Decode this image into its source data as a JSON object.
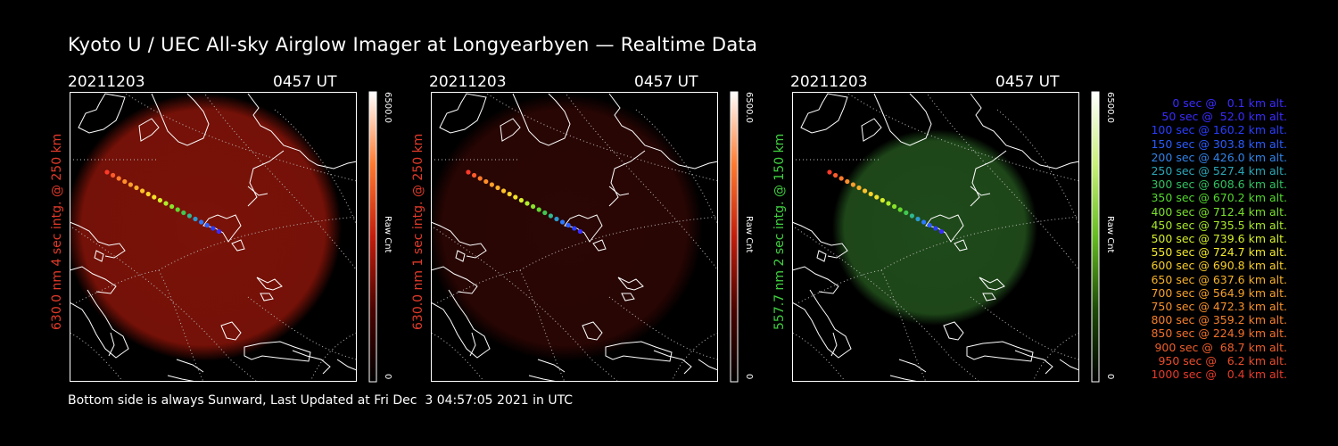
{
  "title": "Kyoto U / UEC All-sky Airglow Imager at Longyearbyen — Realtime Data",
  "panels": [
    {
      "date": "20211203",
      "time": "0457 UT",
      "side_label": "630.0 nm 4 sec intg. @ 250 km",
      "label_color": "#e23a2a",
      "cbar_max": "6500.0",
      "cbar_unit": "Raw Cnt",
      "cbar_min": "0",
      "tint": "#7a1208",
      "cbar_colors": [
        "#ffffff",
        "#ff7a30",
        "#c21d0c",
        "#4a0400",
        "#000000"
      ]
    },
    {
      "date": "20211203",
      "time": "0457 UT",
      "side_label": "630.0 nm 1 sec intg. @ 250 km",
      "label_color": "#e23a2a",
      "cbar_max": "6500.0",
      "cbar_unit": "Raw Cnt",
      "cbar_min": "0",
      "tint": "#2a0604",
      "cbar_colors": [
        "#ffffff",
        "#ff7a30",
        "#c21d0c",
        "#4a0400",
        "#000000"
      ]
    },
    {
      "date": "20211203",
      "time": "0457 UT",
      "side_label": "557.7 nm 2 sec intg. @ 150 km",
      "label_color": "#3fd13f",
      "cbar_max": "6500.0",
      "cbar_unit": "Raw Cnt",
      "cbar_min": "0",
      "tint": "#1f4a1a",
      "cbar_colors": [
        "#ffffff",
        "#c9f07a",
        "#66bb22",
        "#1d4a08",
        "#000000"
      ]
    }
  ],
  "legend": [
    {
      "text": "0 sec @   0.1 km alt.",
      "color": "#3a2bff"
    },
    {
      "text": "50 sec @  52.0 km alt.",
      "color": "#3a2bff"
    },
    {
      "text": "100 sec @ 160.2 km alt.",
      "color": "#2a3dff"
    },
    {
      "text": "150 sec @ 303.8 km alt.",
      "color": "#2a5cff"
    },
    {
      "text": "200 sec @ 426.0 km alt.",
      "color": "#3083e8"
    },
    {
      "text": "250 sec @ 527.4 km alt.",
      "color": "#2aa7b8"
    },
    {
      "text": "300 sec @ 608.6 km alt.",
      "color": "#30c060"
    },
    {
      "text": "350 sec @ 670.2 km alt.",
      "color": "#52d82c"
    },
    {
      "text": "400 sec @ 712.4 km alt.",
      "color": "#7ae02a"
    },
    {
      "text": "450 sec @ 735.5 km alt.",
      "color": "#a8e82a"
    },
    {
      "text": "500 sec @ 739.6 km alt.",
      "color": "#d6ee2a"
    },
    {
      "text": "550 sec @ 724.7 km alt.",
      "color": "#f2ea2a"
    },
    {
      "text": "600 sec @ 690.8 km alt.",
      "color": "#f6cc2a"
    },
    {
      "text": "650 sec @ 637.6 km alt.",
      "color": "#f6b22a"
    },
    {
      "text": "700 sec @ 564.9 km alt.",
      "color": "#f6a02a"
    },
    {
      "text": "750 sec @ 472.3 km alt.",
      "color": "#f6902a"
    },
    {
      "text": "800 sec @ 359.2 km alt.",
      "color": "#f6802a"
    },
    {
      "text": "850 sec @ 224.9 km alt.",
      "color": "#f2702a"
    },
    {
      "text": "900 sec @  68.7 km alt.",
      "color": "#ee5e2a"
    },
    {
      "text": "950 sec @   6.2 km alt.",
      "color": "#ea4c2a"
    },
    {
      "text": "1000 sec @   0.4 km alt.",
      "color": "#e63a2a"
    }
  ],
  "footer": "Bottom side is always Sunward, Last Updated at Fri Dec  3 04:57:05 2021 in UTC"
}
